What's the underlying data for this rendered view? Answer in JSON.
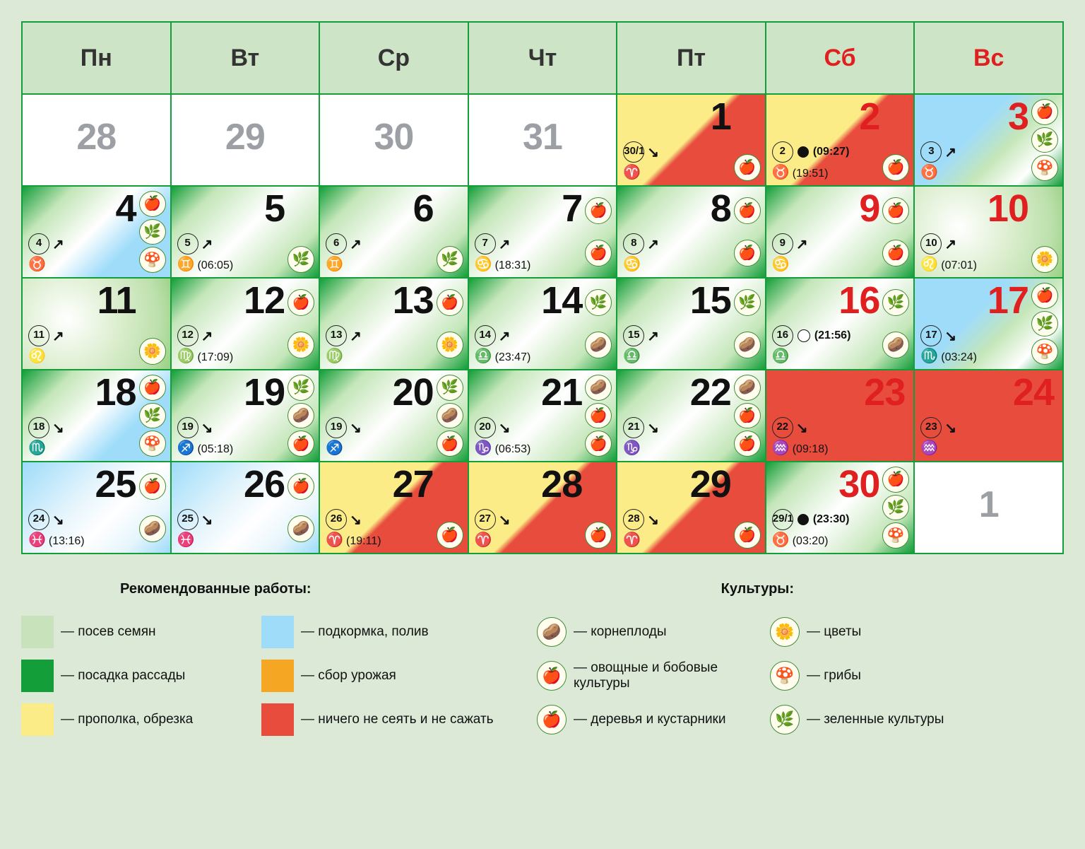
{
  "headers": [
    "Пн",
    "Вт",
    "Ср",
    "Чт",
    "Пт",
    "Сб",
    "Вс"
  ],
  "weekend_idx": [
    5,
    6
  ],
  "zodiac_glyphs": {
    "aries": "♈",
    "taurus": "♉",
    "gemini": "♊",
    "cancer": "♋",
    "leo": "♌",
    "virgo": "♍",
    "libra": "♎",
    "scorpio": "♏",
    "sagittarius": "♐",
    "capricorn": "♑",
    "aquarius": "♒",
    "pisces": "♓"
  },
  "colors": {
    "page_bg": "#dce9d7",
    "border": "#139e3a",
    "header_bg": "#cee4c7",
    "weekend": "#e02020",
    "out": "#9ca0a4",
    "red": "#e84c3d",
    "yellow": "#fcec87",
    "blue": "#9edcfa",
    "orange": "#f5a623",
    "light_green": "#c8e3bb",
    "dark_green": "#139e3a",
    "icon_ring": "#418c39",
    "icon_fill": "#fffdee"
  },
  "cells": [
    [
      {
        "num": "28",
        "out": true,
        "bg": "out"
      },
      {
        "num": "29",
        "out": true,
        "bg": "out"
      },
      {
        "num": "30",
        "out": true,
        "bg": "out"
      },
      {
        "num": "31",
        "out": true,
        "bg": "out"
      },
      {
        "num": "1",
        "bg": "yellow-red",
        "moon": {
          "day": "30/1",
          "dir": "↘"
        },
        "zodiac": {
          "sign": "aries"
        },
        "icons": [
          "apple"
        ]
      },
      {
        "num": "2",
        "bg": "yellow-red",
        "weekend": true,
        "moon": {
          "day": "2",
          "phase": "new",
          "time": "(09:27)"
        },
        "zodiac": {
          "sign": "taurus",
          "time": "(19:51)"
        },
        "icons": [
          "apple"
        ]
      },
      {
        "num": "3",
        "bg": "blue-l",
        "weekend": true,
        "moon": {
          "day": "3",
          "dir": "↗"
        },
        "zodiac": {
          "sign": "taurus"
        },
        "icons": [
          "tomato",
          "greens",
          "mushroom"
        ]
      }
    ],
    [
      {
        "num": "4",
        "bg": "green-blue",
        "moon": {
          "day": "4",
          "dir": "↗"
        },
        "zodiac": {
          "sign": "taurus"
        },
        "icons": [
          "tomato",
          "greens",
          "mushroom"
        ]
      },
      {
        "num": "5",
        "bg": "green-r",
        "moon": {
          "day": "5",
          "dir": "↗"
        },
        "zodiac": {
          "sign": "gemini",
          "time": "(06:05)"
        },
        "icons": [
          "greens"
        ]
      },
      {
        "num": "6",
        "bg": "green-r",
        "moon": {
          "day": "6",
          "dir": "↗"
        },
        "zodiac": {
          "sign": "gemini"
        },
        "icons": [
          "greens"
        ]
      },
      {
        "num": "7",
        "bg": "green-r",
        "moon": {
          "day": "7",
          "dir": "↗"
        },
        "zodiac": {
          "sign": "cancer",
          "time": "(18:31)"
        },
        "icons": [
          "tomato",
          "tomato"
        ]
      },
      {
        "num": "8",
        "bg": "green-r",
        "moon": {
          "day": "8",
          "dir": "↗"
        },
        "zodiac": {
          "sign": "cancer"
        },
        "icons": [
          "tomato",
          "tomato"
        ]
      },
      {
        "num": "9",
        "bg": "green-r",
        "weekend": true,
        "moon": {
          "day": "9",
          "dir": "↗"
        },
        "zodiac": {
          "sign": "cancer"
        },
        "icons": [
          "tomato",
          "tomato"
        ]
      },
      {
        "num": "10",
        "bg": "green-light",
        "weekend": true,
        "moon": {
          "day": "10",
          "dir": "↗"
        },
        "zodiac": {
          "sign": "leo",
          "time": "(07:01)"
        },
        "icons": [
          "flower"
        ]
      }
    ],
    [
      {
        "num": "11",
        "bg": "green-light",
        "moon": {
          "day": "11",
          "dir": "↗"
        },
        "zodiac": {
          "sign": "leo"
        },
        "icons": [
          "flower"
        ]
      },
      {
        "num": "12",
        "bg": "green-r",
        "moon": {
          "day": "12",
          "dir": "↗"
        },
        "zodiac": {
          "sign": "virgo",
          "time": "(17:09)"
        },
        "icons": [
          "tomato",
          "flower"
        ]
      },
      {
        "num": "13",
        "bg": "green-r",
        "moon": {
          "day": "13",
          "dir": "↗"
        },
        "zodiac": {
          "sign": "virgo"
        },
        "icons": [
          "tomato",
          "flower"
        ]
      },
      {
        "num": "14",
        "bg": "green-r",
        "moon": {
          "day": "14",
          "dir": "↗"
        },
        "zodiac": {
          "sign": "libra",
          "time": "(23:47)"
        },
        "icons": [
          "greens",
          "potato"
        ]
      },
      {
        "num": "15",
        "bg": "green-r",
        "moon": {
          "day": "15",
          "dir": "↗"
        },
        "zodiac": {
          "sign": "libra"
        },
        "icons": [
          "greens",
          "potato"
        ]
      },
      {
        "num": "16",
        "bg": "green-r",
        "weekend": true,
        "moon": {
          "day": "16",
          "phase": "full",
          "time": "(21:56)"
        },
        "zodiac": {
          "sign": "libra"
        },
        "icons": [
          "greens",
          "potato"
        ]
      },
      {
        "num": "17",
        "bg": "blue-l",
        "weekend": true,
        "moon": {
          "day": "17",
          "dir": "↘"
        },
        "zodiac": {
          "sign": "scorpio",
          "time": "(03:24)"
        },
        "icons": [
          "tomato",
          "greens",
          "mushroom"
        ]
      }
    ],
    [
      {
        "num": "18",
        "bg": "green-blue",
        "moon": {
          "day": "18",
          "dir": "↘"
        },
        "zodiac": {
          "sign": "scorpio"
        },
        "icons": [
          "tomato",
          "greens",
          "mushroom"
        ]
      },
      {
        "num": "19",
        "bg": "green-r",
        "moon": {
          "day": "19",
          "dir": "↘"
        },
        "zodiac": {
          "sign": "sagittarius",
          "time": "(05:18)"
        },
        "icons": [
          "greens",
          "potato",
          "apple"
        ]
      },
      {
        "num": "20",
        "bg": "green-r",
        "moon": {
          "day": "19",
          "dir": "↘"
        },
        "zodiac": {
          "sign": "sagittarius"
        },
        "icons": [
          "greens",
          "potato",
          "apple"
        ]
      },
      {
        "num": "21",
        "bg": "green-r",
        "moon": {
          "day": "20",
          "dir": "↘"
        },
        "zodiac": {
          "sign": "capricorn",
          "time": "(06:53)"
        },
        "icons": [
          "potato",
          "tomato",
          "apple"
        ]
      },
      {
        "num": "22",
        "bg": "green-r",
        "moon": {
          "day": "21",
          "dir": "↘"
        },
        "zodiac": {
          "sign": "capricorn"
        },
        "icons": [
          "potato",
          "tomato",
          "apple"
        ]
      },
      {
        "num": "23",
        "bg": "red",
        "weekend": true,
        "moon": {
          "day": "22",
          "dir": "↘"
        },
        "zodiac": {
          "sign": "aquarius",
          "time": "(09:18)"
        },
        "tight": true
      },
      {
        "num": "24",
        "bg": "red",
        "weekend": true,
        "moon": {
          "day": "23",
          "dir": "↘"
        },
        "zodiac": {
          "sign": "aquarius"
        },
        "tight": true
      }
    ],
    [
      {
        "num": "25",
        "bg": "blue",
        "moon": {
          "day": "24",
          "dir": "↘"
        },
        "zodiac": {
          "sign": "pisces",
          "time": "(13:16)"
        },
        "icons": [
          "tomato",
          "potato"
        ]
      },
      {
        "num": "26",
        "bg": "blue",
        "moon": {
          "day": "25",
          "dir": "↘"
        },
        "zodiac": {
          "sign": "pisces"
        },
        "icons": [
          "tomato",
          "potato"
        ]
      },
      {
        "num": "27",
        "bg": "yellow-red",
        "moon": {
          "day": "26",
          "dir": "↘"
        },
        "zodiac": {
          "sign": "aries",
          "time": "(19:11)"
        },
        "icons": [
          "apple"
        ]
      },
      {
        "num": "28",
        "bg": "yellow-red",
        "moon": {
          "day": "27",
          "dir": "↘"
        },
        "zodiac": {
          "sign": "aries"
        },
        "icons": [
          "apple"
        ]
      },
      {
        "num": "29",
        "bg": "yellow-red",
        "moon": {
          "day": "28",
          "dir": "↘"
        },
        "zodiac": {
          "sign": "aries"
        },
        "icons": [
          "apple"
        ]
      },
      {
        "num": "30",
        "bg": "green-r",
        "weekend": true,
        "moon": {
          "day": "29/1",
          "phase": "new",
          "time": "(23:30)"
        },
        "zodiac": {
          "sign": "taurus",
          "time": "(03:20)"
        },
        "icons": [
          "tomato",
          "greens",
          "mushroom"
        ]
      },
      {
        "num": "1",
        "out": true,
        "bg": "out"
      }
    ]
  ],
  "legend": {
    "works_title": "Рекомендованные работы:",
    "cultures_title": "Культуры:",
    "works": [
      {
        "sw": "lgreen",
        "label": "— посев семян"
      },
      {
        "sw": "lblue",
        "label": "— подкормка, полив"
      },
      {
        "sw": "dgreen",
        "label": "— посадка рассады"
      },
      {
        "sw": "orange",
        "label": "— сбор урожая"
      },
      {
        "sw": "yellow",
        "label": "— прополка, обрезка"
      },
      {
        "sw": "red",
        "label": "— ничего не сеять и не сажать"
      }
    ],
    "cultures": [
      {
        "ic": "potato",
        "label": "— корнеплоды"
      },
      {
        "ic": "flower",
        "label": "— цветы"
      },
      {
        "ic": "tomato",
        "label": "— овощные и бобовые культуры"
      },
      {
        "ic": "mushroom",
        "label": "— грибы"
      },
      {
        "ic": "apple",
        "label": "— деревья и кустарники"
      },
      {
        "ic": "greens",
        "label": "— зеленные культуры"
      }
    ]
  }
}
